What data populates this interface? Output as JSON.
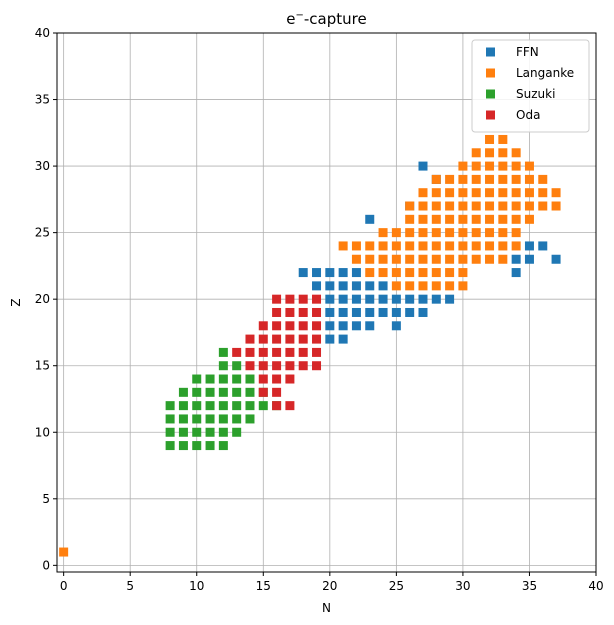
{
  "chart_data": {
    "type": "scatter",
    "title_base": "e",
    "title_sup": "−",
    "title_rest": "-capture",
    "xlabel": "N",
    "ylabel": "Z",
    "xlim": [
      -0.5,
      40
    ],
    "ylim": [
      -0.5,
      40
    ],
    "xticks": [
      0,
      5,
      10,
      15,
      20,
      25,
      30,
      35,
      40
    ],
    "yticks": [
      0,
      5,
      10,
      15,
      20,
      25,
      30,
      35,
      40
    ],
    "grid": true,
    "legend_position": "top-right",
    "series": [
      {
        "name": "FFN",
        "color": "#1f77b4",
        "points": [
          [
            27,
            30
          ],
          [
            28,
            29
          ],
          [
            23,
            26
          ],
          [
            26,
            27
          ],
          [
            18,
            22
          ],
          [
            19,
            22
          ],
          [
            20,
            22
          ],
          [
            21,
            22
          ],
          [
            22,
            22
          ],
          [
            19,
            21
          ],
          [
            20,
            21
          ],
          [
            21,
            21
          ],
          [
            22,
            21
          ],
          [
            23,
            21
          ],
          [
            24,
            21
          ],
          [
            20,
            20
          ],
          [
            21,
            20
          ],
          [
            22,
            20
          ],
          [
            23,
            20
          ],
          [
            24,
            20
          ],
          [
            25,
            20
          ],
          [
            26,
            20
          ],
          [
            27,
            20
          ],
          [
            28,
            20
          ],
          [
            29,
            20
          ],
          [
            20,
            19
          ],
          [
            21,
            19
          ],
          [
            22,
            19
          ],
          [
            23,
            19
          ],
          [
            24,
            19
          ],
          [
            25,
            19
          ],
          [
            26,
            19
          ],
          [
            27,
            19
          ],
          [
            20,
            18
          ],
          [
            21,
            18
          ],
          [
            22,
            18
          ],
          [
            23,
            18
          ],
          [
            25,
            18
          ],
          [
            20,
            17
          ],
          [
            21,
            17
          ],
          [
            35,
            24
          ],
          [
            36,
            24
          ],
          [
            34,
            23
          ],
          [
            35,
            23
          ],
          [
            37,
            23
          ],
          [
            34,
            22
          ]
        ]
      },
      {
        "name": "Langanke",
        "color": "#ff7f0e",
        "points": [
          [
            0,
            1
          ],
          [
            32,
            32
          ],
          [
            33,
            32
          ],
          [
            31,
            31
          ],
          [
            32,
            31
          ],
          [
            33,
            31
          ],
          [
            34,
            31
          ],
          [
            30,
            30
          ],
          [
            31,
            30
          ],
          [
            32,
            30
          ],
          [
            33,
            30
          ],
          [
            34,
            30
          ],
          [
            35,
            30
          ],
          [
            28,
            29
          ],
          [
            29,
            29
          ],
          [
            30,
            29
          ],
          [
            31,
            29
          ],
          [
            32,
            29
          ],
          [
            33,
            29
          ],
          [
            34,
            29
          ],
          [
            35,
            29
          ],
          [
            36,
            29
          ],
          [
            27,
            28
          ],
          [
            28,
            28
          ],
          [
            29,
            28
          ],
          [
            30,
            28
          ],
          [
            31,
            28
          ],
          [
            32,
            28
          ],
          [
            33,
            28
          ],
          [
            34,
            28
          ],
          [
            35,
            28
          ],
          [
            36,
            28
          ],
          [
            37,
            28
          ],
          [
            26,
            27
          ],
          [
            27,
            27
          ],
          [
            28,
            27
          ],
          [
            29,
            27
          ],
          [
            30,
            27
          ],
          [
            31,
            27
          ],
          [
            32,
            27
          ],
          [
            33,
            27
          ],
          [
            34,
            27
          ],
          [
            35,
            27
          ],
          [
            36,
            27
          ],
          [
            37,
            27
          ],
          [
            26,
            26
          ],
          [
            27,
            26
          ],
          [
            28,
            26
          ],
          [
            29,
            26
          ],
          [
            30,
            26
          ],
          [
            31,
            26
          ],
          [
            32,
            26
          ],
          [
            33,
            26
          ],
          [
            34,
            26
          ],
          [
            35,
            26
          ],
          [
            24,
            25
          ],
          [
            25,
            25
          ],
          [
            26,
            25
          ],
          [
            27,
            25
          ],
          [
            28,
            25
          ],
          [
            29,
            25
          ],
          [
            30,
            25
          ],
          [
            31,
            25
          ],
          [
            32,
            25
          ],
          [
            33,
            25
          ],
          [
            34,
            25
          ],
          [
            21,
            24
          ],
          [
            22,
            24
          ],
          [
            23,
            24
          ],
          [
            24,
            24
          ],
          [
            25,
            24
          ],
          [
            26,
            24
          ],
          [
            27,
            24
          ],
          [
            28,
            24
          ],
          [
            29,
            24
          ],
          [
            30,
            24
          ],
          [
            31,
            24
          ],
          [
            32,
            24
          ],
          [
            33,
            24
          ],
          [
            34,
            24
          ],
          [
            22,
            23
          ],
          [
            23,
            23
          ],
          [
            24,
            23
          ],
          [
            25,
            23
          ],
          [
            26,
            23
          ],
          [
            27,
            23
          ],
          [
            28,
            23
          ],
          [
            29,
            23
          ],
          [
            30,
            23
          ],
          [
            31,
            23
          ],
          [
            32,
            23
          ],
          [
            33,
            23
          ],
          [
            23,
            22
          ],
          [
            24,
            22
          ],
          [
            25,
            22
          ],
          [
            26,
            22
          ],
          [
            27,
            22
          ],
          [
            28,
            22
          ],
          [
            29,
            22
          ],
          [
            30,
            22
          ],
          [
            25,
            21
          ],
          [
            26,
            21
          ],
          [
            27,
            21
          ],
          [
            28,
            21
          ],
          [
            29,
            21
          ],
          [
            30,
            21
          ]
        ]
      },
      {
        "name": "Suzuki",
        "color": "#2ca02c",
        "points": [
          [
            12,
            16
          ],
          [
            12,
            15
          ],
          [
            13,
            15
          ],
          [
            10,
            14
          ],
          [
            11,
            14
          ],
          [
            12,
            14
          ],
          [
            13,
            14
          ],
          [
            14,
            14
          ],
          [
            9,
            13
          ],
          [
            10,
            13
          ],
          [
            11,
            13
          ],
          [
            12,
            13
          ],
          [
            13,
            13
          ],
          [
            14,
            13
          ],
          [
            15,
            13
          ],
          [
            8,
            12
          ],
          [
            9,
            12
          ],
          [
            10,
            12
          ],
          [
            11,
            12
          ],
          [
            12,
            12
          ],
          [
            13,
            12
          ],
          [
            14,
            12
          ],
          [
            15,
            12
          ],
          [
            16,
            12
          ],
          [
            8,
            11
          ],
          [
            9,
            11
          ],
          [
            10,
            11
          ],
          [
            11,
            11
          ],
          [
            12,
            11
          ],
          [
            13,
            11
          ],
          [
            14,
            11
          ],
          [
            8,
            10
          ],
          [
            9,
            10
          ],
          [
            10,
            10
          ],
          [
            11,
            10
          ],
          [
            12,
            10
          ],
          [
            13,
            10
          ],
          [
            8,
            9
          ],
          [
            9,
            9
          ],
          [
            10,
            9
          ],
          [
            11,
            9
          ],
          [
            12,
            9
          ]
        ]
      },
      {
        "name": "Oda",
        "color": "#d62728",
        "points": [
          [
            16,
            20
          ],
          [
            17,
            20
          ],
          [
            18,
            20
          ],
          [
            19,
            20
          ],
          [
            16,
            19
          ],
          [
            17,
            19
          ],
          [
            18,
            19
          ],
          [
            19,
            19
          ],
          [
            15,
            18
          ],
          [
            16,
            18
          ],
          [
            17,
            18
          ],
          [
            18,
            18
          ],
          [
            19,
            18
          ],
          [
            14,
            17
          ],
          [
            15,
            17
          ],
          [
            16,
            17
          ],
          [
            17,
            17
          ],
          [
            18,
            17
          ],
          [
            19,
            17
          ],
          [
            14,
            16
          ],
          [
            15,
            16
          ],
          [
            16,
            16
          ],
          [
            17,
            16
          ],
          [
            18,
            16
          ],
          [
            19,
            16
          ],
          [
            13,
            16
          ],
          [
            14,
            15
          ],
          [
            15,
            15
          ],
          [
            16,
            15
          ],
          [
            17,
            15
          ],
          [
            18,
            15
          ],
          [
            19,
            15
          ],
          [
            15,
            14
          ],
          [
            16,
            14
          ],
          [
            17,
            14
          ],
          [
            15,
            13
          ],
          [
            16,
            13
          ],
          [
            16,
            12
          ],
          [
            17,
            12
          ]
        ]
      }
    ]
  }
}
